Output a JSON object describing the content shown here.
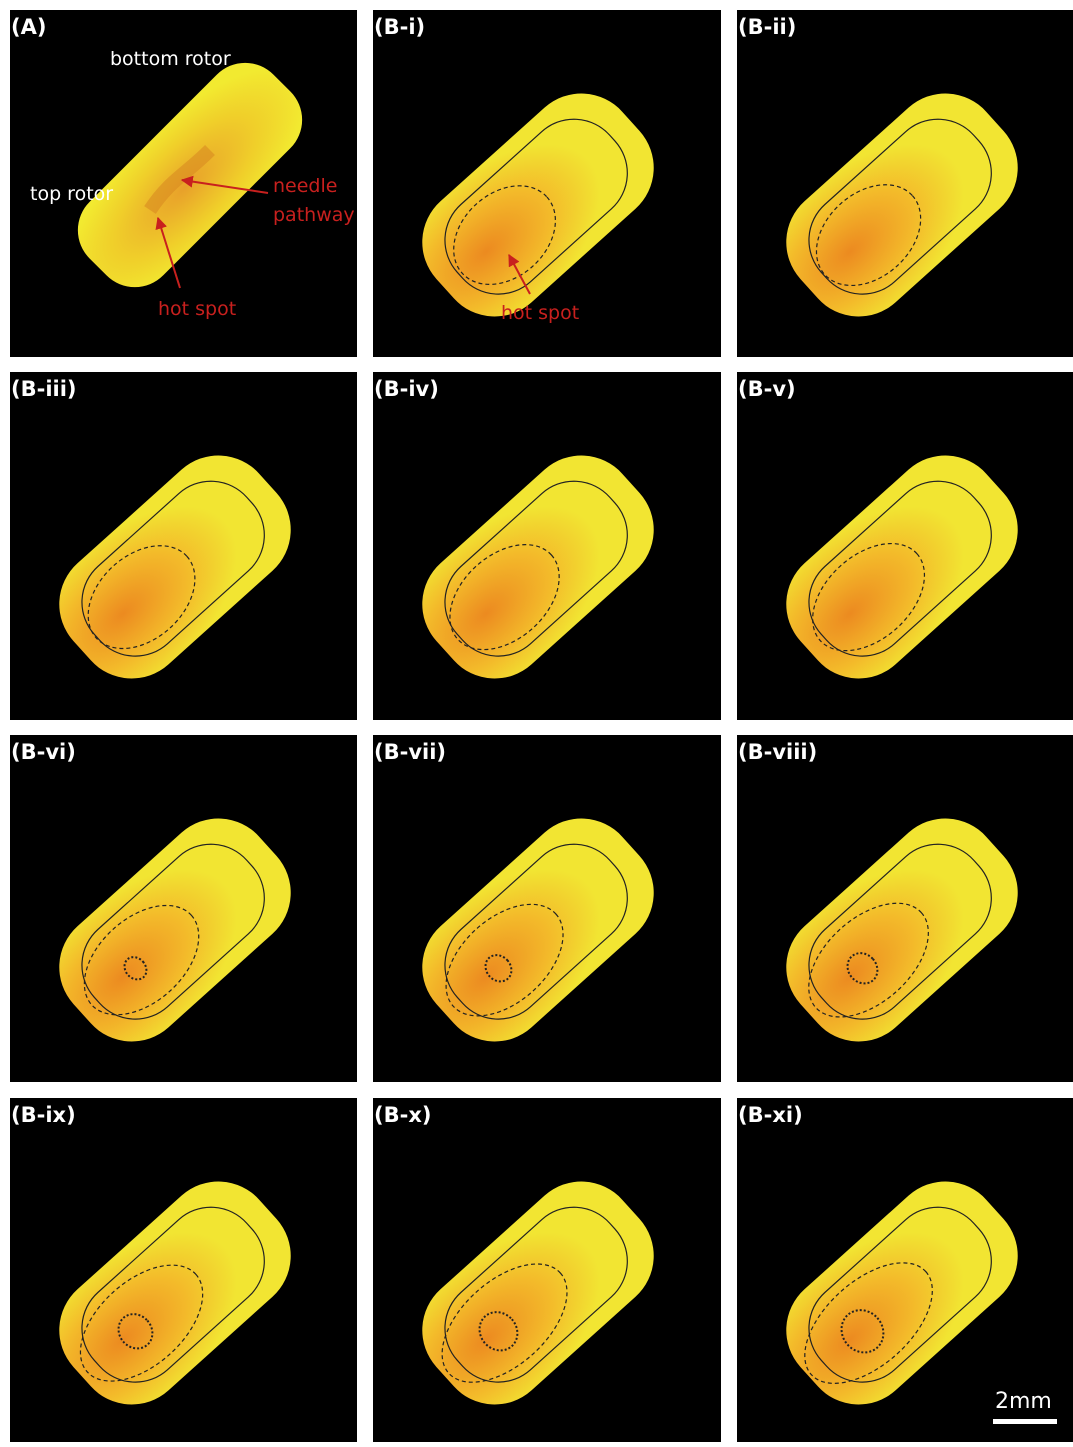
{
  "panels": [
    {
      "label": "(A)",
      "annotations": [
        "bottom rotor",
        "top rotor",
        "needle",
        "pathway",
        "hot spot"
      ]
    },
    {
      "label": "(B-i)",
      "annotations": [
        "hot spot"
      ]
    },
    {
      "label": "(B-ii)"
    },
    {
      "label": "(B-iii)"
    },
    {
      "label": "(B-iv)"
    },
    {
      "label": "(B-v)"
    },
    {
      "label": "(B-vi)"
    },
    {
      "label": "(B-vii)"
    },
    {
      "label": "(B-viii)"
    },
    {
      "label": "(B-ix)"
    },
    {
      "label": "(B-x)"
    },
    {
      "label": "(B-xi)"
    }
  ],
  "scale_bar": "2mm"
}
